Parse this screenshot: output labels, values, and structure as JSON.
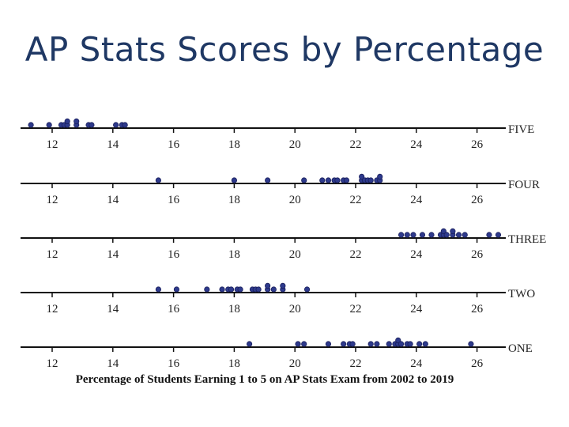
{
  "slide": {
    "title": "AP Stats Scores by Percentage"
  },
  "chart_data": {
    "type": "scatter",
    "subtype": "stacked-dotplot",
    "title": "AP Stats Scores by Percentage",
    "xlabel": "Percentage of Students Earning 1 to 5 on AP Stats Exam from 2002 to 2019",
    "xlim": [
      11,
      27
    ],
    "xticks": [
      12,
      14,
      16,
      18,
      20,
      22,
      24,
      26
    ],
    "xtick_labels": [
      "12",
      "14",
      "16",
      "18",
      "20",
      "22",
      "24",
      "26"
    ],
    "dot_color": "#2e3a8c",
    "series": [
      {
        "name": "FIVE",
        "values": [
          11.3,
          11.9,
          12.3,
          12.4,
          12.5,
          12.5,
          12.8,
          12.8,
          13.2,
          13.3,
          14.1,
          14.3,
          14.4
        ]
      },
      {
        "name": "FOUR",
        "values": [
          15.5,
          18.0,
          19.1,
          20.3,
          20.9,
          21.1,
          21.3,
          21.4,
          21.6,
          21.7,
          22.2,
          22.2,
          22.3,
          22.4,
          22.5,
          22.7,
          22.8,
          22.8
        ]
      },
      {
        "name": "THREE",
        "values": [
          23.5,
          23.7,
          23.9,
          24.2,
          24.5,
          24.8,
          24.9,
          24.9,
          25.0,
          25.2,
          25.2,
          25.4,
          25.6,
          26.4,
          26.7
        ]
      },
      {
        "name": "TWO",
        "values": [
          15.5,
          16.1,
          17.1,
          17.6,
          17.8,
          17.9,
          18.1,
          18.2,
          18.6,
          18.7,
          18.8,
          19.1,
          19.1,
          19.3,
          19.6,
          19.6,
          20.4
        ]
      },
      {
        "name": "ONE",
        "values": [
          18.5,
          20.1,
          20.3,
          21.1,
          21.6,
          21.8,
          21.9,
          22.5,
          22.7,
          23.1,
          23.3,
          23.4,
          23.4,
          23.5,
          23.7,
          23.8,
          24.1,
          24.3,
          25.8
        ]
      }
    ]
  }
}
